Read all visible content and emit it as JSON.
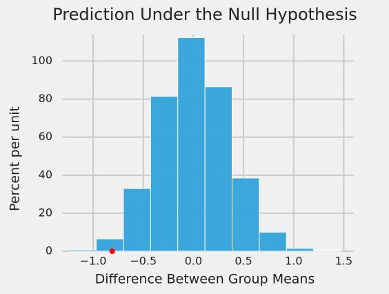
{
  "chart_data": {
    "type": "histogram",
    "title": "Prediction Under the Null Hypothesis",
    "xlabel": "Difference Between Group Means",
    "ylabel": "Percent per unit",
    "bins": [
      -1.24,
      -0.969,
      -0.698,
      -0.427,
      -0.156,
      0.115,
      0.386,
      0.657,
      0.928,
      1.199,
      1.47
    ],
    "values": [
      0.7,
      6.5,
      33,
      81.5,
      112.4,
      86.5,
      38.5,
      10,
      1.5,
      0.3
    ],
    "color": "#30a2da",
    "marker": {
      "x": -0.81,
      "y": 0,
      "color": "#ff0000"
    },
    "xlim": [
      -1.31,
      1.6
    ],
    "ylim": [
      0,
      114
    ],
    "xticks": [
      {
        "value": -1.0,
        "label": "−1.0"
      },
      {
        "value": -0.5,
        "label": "−0.5"
      },
      {
        "value": 0.0,
        "label": "0.0"
      },
      0.5,
      {
        "value": 1.0,
        "label": "1.0"
      },
      1.5
    ],
    "yticks": [
      0,
      20,
      40,
      60,
      80,
      100
    ],
    "grid": true
  }
}
